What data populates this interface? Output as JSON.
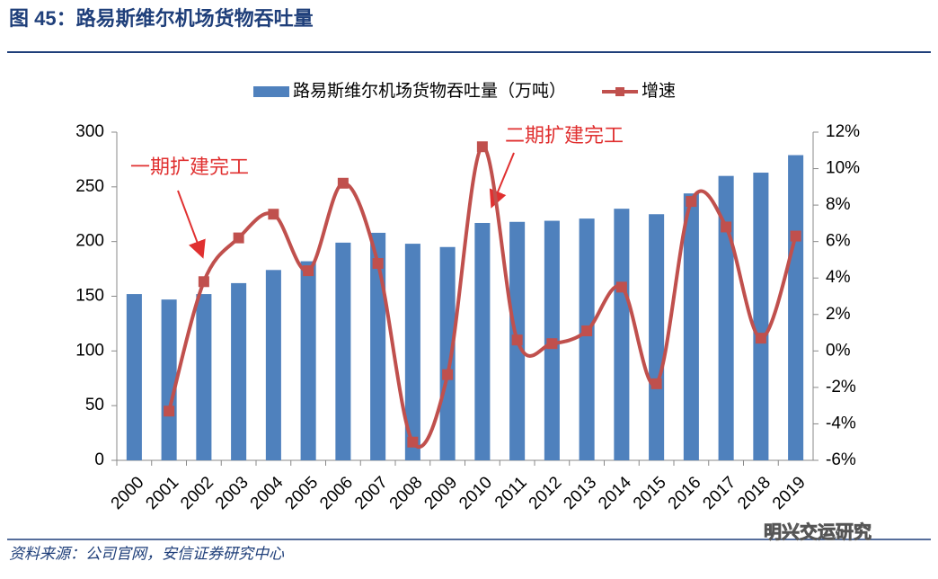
{
  "chart_data": {
    "type": "bar_line",
    "title": "图 45：路易斯维尔机场货物吞吐量",
    "source": "资料来源：公司官网，安信证券研究中心",
    "watermark": "明兴交运研究",
    "annotations": [
      "一期扩建完工",
      "二期扩建完工"
    ],
    "legend": "top",
    "categories": [
      "2000",
      "2001",
      "2002",
      "2003",
      "2004",
      "2005",
      "2006",
      "2007",
      "2008",
      "2009",
      "2010",
      "2011",
      "2012",
      "2013",
      "2014",
      "2015",
      "2016",
      "2017",
      "2018",
      "2019"
    ],
    "series": [
      {
        "name": "路易斯维尔机场货物吞吐量（万吨）",
        "color": "#4f81bd",
        "type": "bar",
        "values": [
          152,
          147,
          152,
          162,
          174,
          182,
          199,
          208,
          198,
          195,
          217,
          218,
          219,
          221,
          230,
          225,
          244,
          260,
          263,
          279
        ]
      },
      {
        "name": "增速",
        "color": "#c0504d",
        "type": "line",
        "axis": "y2",
        "values": [
          null,
          -3.3,
          3.8,
          6.2,
          7.5,
          4.4,
          9.2,
          4.8,
          -5.0,
          -1.3,
          11.2,
          0.6,
          0.4,
          1.1,
          3.5,
          -1.8,
          8.2,
          6.8,
          0.7,
          6.3
        ]
      }
    ],
    "ylim": [
      0,
      300
    ],
    "yticks": [
      0,
      50,
      100,
      150,
      200,
      250,
      300
    ],
    "y2lim": [
      -6,
      12
    ],
    "y2ticks": [
      {
        "value": -6,
        "label": "-6%"
      },
      {
        "value": -4,
        "label": "-4%"
      },
      {
        "value": -2,
        "label": "-2%"
      },
      {
        "value": 0,
        "label": "0%"
      },
      {
        "value": 2,
        "label": "2%"
      },
      {
        "value": 4,
        "label": "4%"
      },
      {
        "value": 6,
        "label": "6%"
      },
      {
        "value": 8,
        "label": "8%"
      },
      {
        "value": 10,
        "label": "10%"
      },
      {
        "value": 12,
        "label": "12%"
      }
    ]
  }
}
